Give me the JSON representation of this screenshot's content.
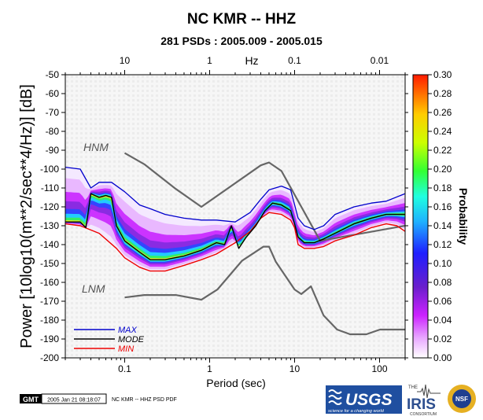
{
  "chart_data": {
    "type": "heatmap",
    "title": "NC KMR -- HHZ",
    "subtitle": "281 PSDs : 2005.009 - 2005.015",
    "xlabel": "Period (sec)",
    "x2label": "Hz",
    "ylabel": "Power [10log10(m**2/sec**4/Hz)] [dB]",
    "colorbar_label": "Probability",
    "x_scale": "log",
    "xlim": [
      0.02,
      200
    ],
    "ylim": [
      -200,
      -50
    ],
    "x_ticks": [
      0.1,
      1,
      10,
      100
    ],
    "x_tick_labels": [
      "0.1",
      "1",
      "10",
      "100"
    ],
    "x2_ticks": [
      0.1,
      1,
      10,
      100
    ],
    "x2_tick_labels": [
      "10",
      "1",
      "0.1",
      "0.01"
    ],
    "y_ticks": [
      -50,
      -60,
      -70,
      -80,
      -90,
      -100,
      -110,
      -120,
      -130,
      -140,
      -150,
      -160,
      -170,
      -180,
      -190,
      -200
    ],
    "colorbar_range": [
      0,
      0.3
    ],
    "colorbar_ticks": [
      "0.30",
      "0.28",
      "0.26",
      "0.24",
      "0.22",
      "0.20",
      "0.18",
      "0.16",
      "0.14",
      "0.12",
      "0.10",
      "0.08",
      "0.06",
      "0.04",
      "0.02",
      "0.00"
    ],
    "legend_position": "bottom-left",
    "series": [
      {
        "name": "MAX",
        "color": "#0000cc",
        "x": [
          0.02,
          0.03,
          0.04,
          0.05,
          0.07,
          0.1,
          0.15,
          0.2,
          0.3,
          0.5,
          0.8,
          1.2,
          2,
          3,
          4,
          5,
          7,
          9,
          11,
          13,
          17,
          22,
          30,
          50,
          80,
          120,
          200
        ],
        "y": [
          -99,
          -100,
          -110,
          -107,
          -107,
          -112,
          -119,
          -121,
          -124,
          -126,
          -127,
          -127,
          -128,
          -123,
          -116,
          -111,
          -109,
          -111,
          -126,
          -130,
          -132,
          -130,
          -124,
          -120,
          -118,
          -117,
          -113
        ]
      },
      {
        "name": "MODE",
        "color": "#000000",
        "x": [
          0.02,
          0.03,
          0.035,
          0.04,
          0.05,
          0.06,
          0.07,
          0.08,
          0.1,
          0.15,
          0.2,
          0.3,
          0.5,
          0.8,
          1.2,
          1.5,
          1.8,
          2.2,
          2.7,
          3.5,
          4.5,
          5.5,
          7,
          9,
          10,
          11,
          13,
          17,
          22,
          30,
          50,
          80,
          120,
          200
        ],
        "y": [
          -128,
          -128,
          -131,
          -113,
          -115,
          -114,
          -115,
          -130,
          -138,
          -144,
          -148,
          -148,
          -146,
          -143,
          -139,
          -140,
          -130,
          -142,
          -136,
          -130,
          -122,
          -118,
          -119,
          -122,
          -129,
          -136,
          -139,
          -139,
          -137,
          -134,
          -129,
          -126,
          -124,
          -124
        ]
      },
      {
        "name": "MIN",
        "color": "#ee0000",
        "x": [
          0.02,
          0.03,
          0.05,
          0.08,
          0.1,
          0.15,
          0.2,
          0.3,
          0.5,
          0.8,
          1.2,
          2,
          3,
          4,
          5,
          7,
          9,
          10,
          11,
          13,
          17,
          22,
          30,
          50,
          80,
          120,
          160,
          200
        ],
        "y": [
          -129,
          -130,
          -134,
          -142,
          -147,
          -152,
          -154,
          -154,
          -151,
          -148,
          -145,
          -139,
          -133,
          -126,
          -123,
          -124,
          -127,
          -131,
          -140,
          -142,
          -142,
          -141,
          -138,
          -135,
          -131,
          -129,
          -130,
          -133
        ]
      },
      {
        "name": "HNM",
        "color": "#666666",
        "x": [
          0.1,
          0.17,
          0.4,
          0.8,
          4,
          5,
          7,
          20,
          200
        ],
        "y": [
          -91.5,
          -97.4,
          -110.5,
          -120,
          -98,
          -96.5,
          -101,
          -138,
          -130
        ]
      },
      {
        "name": "LNM",
        "color": "#666666",
        "x": [
          0.1,
          0.17,
          0.4,
          0.8,
          1.24,
          2.4,
          4.3,
          5,
          6,
          10,
          12,
          15.6,
          21.9,
          31.6,
          45,
          70,
          101,
          154,
          200
        ],
        "y": [
          -168,
          -166.7,
          -166.7,
          -169.2,
          -163.7,
          -148.6,
          -141.1,
          -141.1,
          -149,
          -163.8,
          -166.2,
          -162.1,
          -177.5,
          -185,
          -187.5,
          -187.5,
          -185,
          -185,
          -185
        ]
      }
    ],
    "hnm_label": "HNM",
    "lnm_label": "LNM",
    "band_colors": [
      "#f4e9ff",
      "#e9b8ff",
      "#cc33ff",
      "#8a2be2",
      "#3344ff",
      "#22ccff",
      "#33ee66",
      "#eeee22"
    ]
  },
  "footer": {
    "gmt_badge": "GMT",
    "timestamp": "2005 Jan 21 08:18:07",
    "caption": "NC KMR -- HHZ PSD PDF"
  },
  "logos": {
    "usgs_name": "USGS",
    "usgs_tagline": "science for a changing world",
    "iris_name": "IRIS",
    "iris_the": "THE",
    "iris_consortium": "CONSORTIUM",
    "nsf_name": "NSF"
  }
}
